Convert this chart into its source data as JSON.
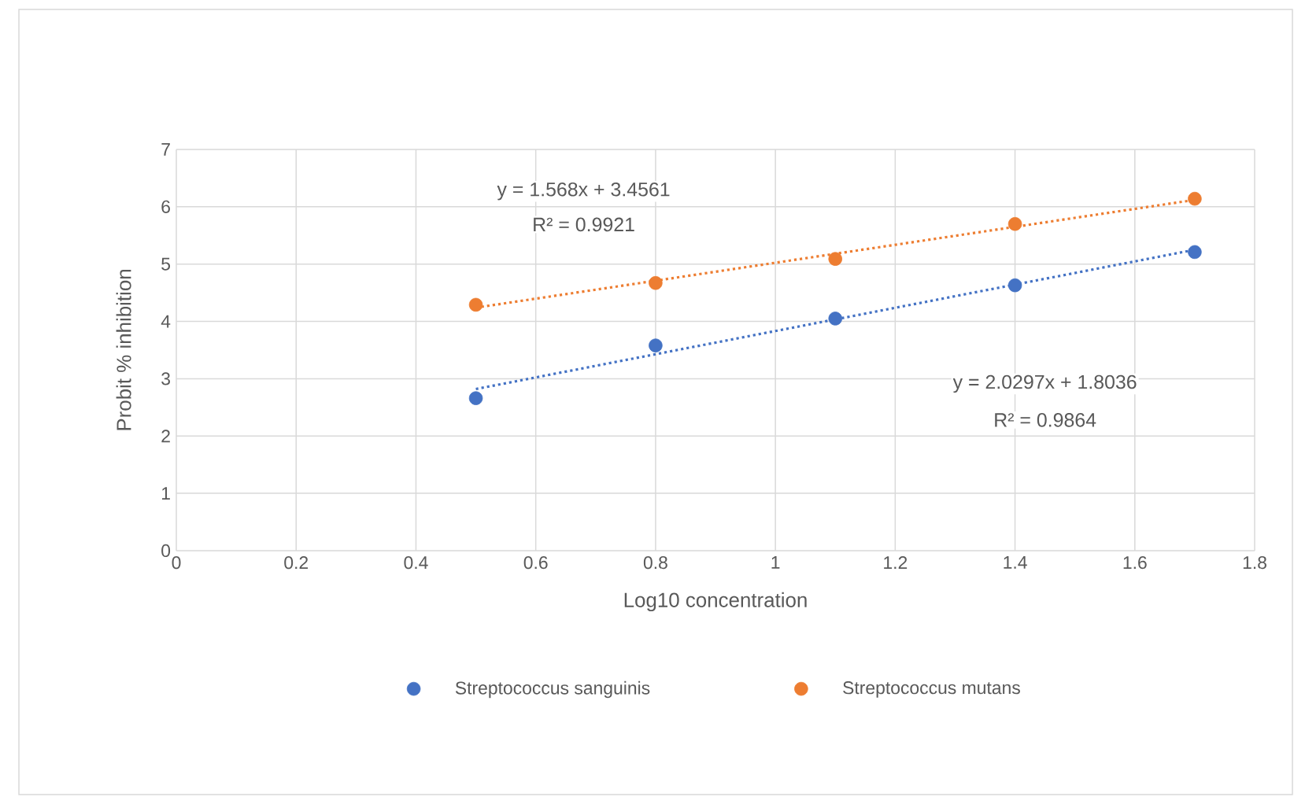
{
  "chart_data": {
    "type": "scatter",
    "xlabel": "Log10 concentration",
    "ylabel": "Probit % inhibition",
    "xlim": [
      0,
      1.8
    ],
    "xticks": [
      0,
      0.2,
      0.4,
      0.6,
      0.8,
      1,
      1.2,
      1.4,
      1.6,
      1.8
    ],
    "ylim": [
      0,
      7
    ],
    "yticks": [
      0,
      1,
      2,
      3,
      4,
      5,
      6,
      7
    ],
    "grid": true,
    "legend": "bottom",
    "marker": "circle",
    "annotations": [
      "y = 1.568x + 3.4561",
      "R² = 0.9921",
      "y = 2.0297x + 1.8036",
      "R² = 0.9864"
    ],
    "series": [
      {
        "name": "Streptococcus sanguinis",
        "color": "#4472c4",
        "x": [
          0.5,
          0.8,
          1.1,
          1.4,
          1.7
        ],
        "values": [
          2.66,
          3.58,
          4.05,
          4.63,
          5.21
        ]
      },
      {
        "name": "Streptococcus mutans",
        "color": "#ed7d31",
        "x": [
          0.5,
          0.8,
          1.1,
          1.4,
          1.7
        ],
        "values": [
          4.29,
          4.67,
          5.09,
          5.7,
          6.14
        ]
      },
      {
        "type": "line",
        "color": "#4472c4",
        "line_style": "dotted",
        "marker": "none",
        "x": [
          0.5,
          1.7
        ],
        "values": [
          2.82,
          5.25
        ]
      },
      {
        "type": "line",
        "color": "#ed7d31",
        "line_style": "dotted",
        "marker": "none",
        "x": [
          0.5,
          1.7
        ],
        "values": [
          4.24,
          6.12
        ]
      }
    ]
  }
}
